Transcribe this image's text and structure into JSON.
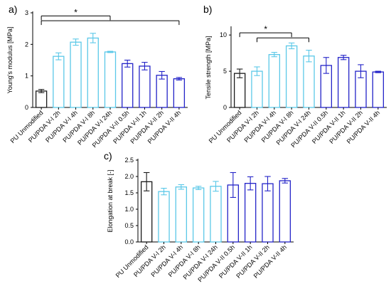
{
  "colors": {
    "unmodified": "#1a1a1a",
    "pda_v_i": "#5bc8e8",
    "pda_v_ii": "#2323c8"
  },
  "chart_data": [
    {
      "panel": "a)",
      "type": "bar",
      "ylabel": "Young's modulus [MPa]",
      "ylim": [
        0,
        3
      ],
      "yticks": [
        0,
        1,
        2,
        3
      ],
      "categories": [
        "PU Unmodified",
        "PU/PDA V-I 2h",
        "PU/PDA V-I 4h",
        "PU/PDA V-I 8h",
        "PU/PDA V-I 24h",
        "PU/PDA V-II 0.5h",
        "PU/PDA V-II 1h",
        "PU/PDA V-II 2h",
        "PU/PDA V-II 4h"
      ],
      "values": [
        0.52,
        1.62,
        2.07,
        2.2,
        1.76,
        1.39,
        1.31,
        1.02,
        0.91
      ],
      "errors": [
        0.05,
        0.11,
        0.1,
        0.15,
        0.02,
        0.11,
        0.12,
        0.12,
        0.04
      ],
      "groups": [
        "unmodified",
        "pda_v_i",
        "pda_v_i",
        "pda_v_i",
        "pda_v_i",
        "pda_v_ii",
        "pda_v_ii",
        "pda_v_ii",
        "pda_v_ii"
      ],
      "significance": [
        {
          "from": 0,
          "to": 4,
          "level": 2.9,
          "label": "*"
        },
        {
          "from": 0,
          "to": 8,
          "level": 2.75,
          "label": ""
        }
      ]
    },
    {
      "panel": "b)",
      "type": "bar",
      "ylabel": "Tensile strength [MPa]",
      "ylim": [
        0,
        11
      ],
      "yticks": [
        0,
        5,
        10
      ],
      "categories": [
        "PU Unmodified",
        "PU/PDA V-I 2h",
        "PU/PDA V-I 4h",
        "PU/PDA V-I 8h",
        "PU/PDA V-I 24h",
        "PU/PDA V-II 0.5h",
        "PU/PDA V-II 1h",
        "PU/PDA V-II 2h",
        "PU/PDA V-II 4h"
      ],
      "values": [
        4.7,
        5.0,
        7.3,
        8.5,
        7.1,
        5.8,
        6.9,
        5.0,
        4.9
      ],
      "errors": [
        0.6,
        0.6,
        0.3,
        0.4,
        0.8,
        1.1,
        0.3,
        0.9,
        0.1
      ],
      "groups": [
        "unmodified",
        "pda_v_i",
        "pda_v_i",
        "pda_v_i",
        "pda_v_i",
        "pda_v_ii",
        "pda_v_ii",
        "pda_v_ii",
        "pda_v_ii"
      ],
      "significance": [
        {
          "from": 0,
          "to": 3,
          "level": 10.3,
          "label": "*"
        },
        {
          "from": 1,
          "to": 4,
          "level": 9.6,
          "label": ""
        }
      ]
    },
    {
      "panel": "c)",
      "type": "bar",
      "ylabel": "Elongation at break [-]",
      "ylim": [
        0,
        2.5
      ],
      "yticks": [
        0.0,
        0.5,
        1.0,
        1.5,
        2.0,
        2.5
      ],
      "ytick_labels": [
        "0.0",
        "0.5",
        "1.0",
        "1.5",
        "2.0",
        "2.5"
      ],
      "categories": [
        "PU Unmodified",
        "PU/PDA V-I 2h",
        "PU/PDA V-I 4h",
        "PU/PDA V-I 8h",
        "PU/PDA V-I 24h",
        "PU/PDA V-II 0.5h",
        "PU/PDA V-II 1h",
        "PU/PDA V-II 2h",
        "PU/PDA V-II 4h"
      ],
      "values": [
        1.84,
        1.54,
        1.68,
        1.65,
        1.7,
        1.74,
        1.79,
        1.78,
        1.87
      ],
      "errors": [
        0.28,
        0.1,
        0.07,
        0.05,
        0.15,
        0.38,
        0.2,
        0.22,
        0.07
      ],
      "groups": [
        "unmodified",
        "pda_v_i",
        "pda_v_i",
        "pda_v_i",
        "pda_v_i",
        "pda_v_ii",
        "pda_v_ii",
        "pda_v_ii",
        "pda_v_ii"
      ],
      "significance": []
    }
  ]
}
